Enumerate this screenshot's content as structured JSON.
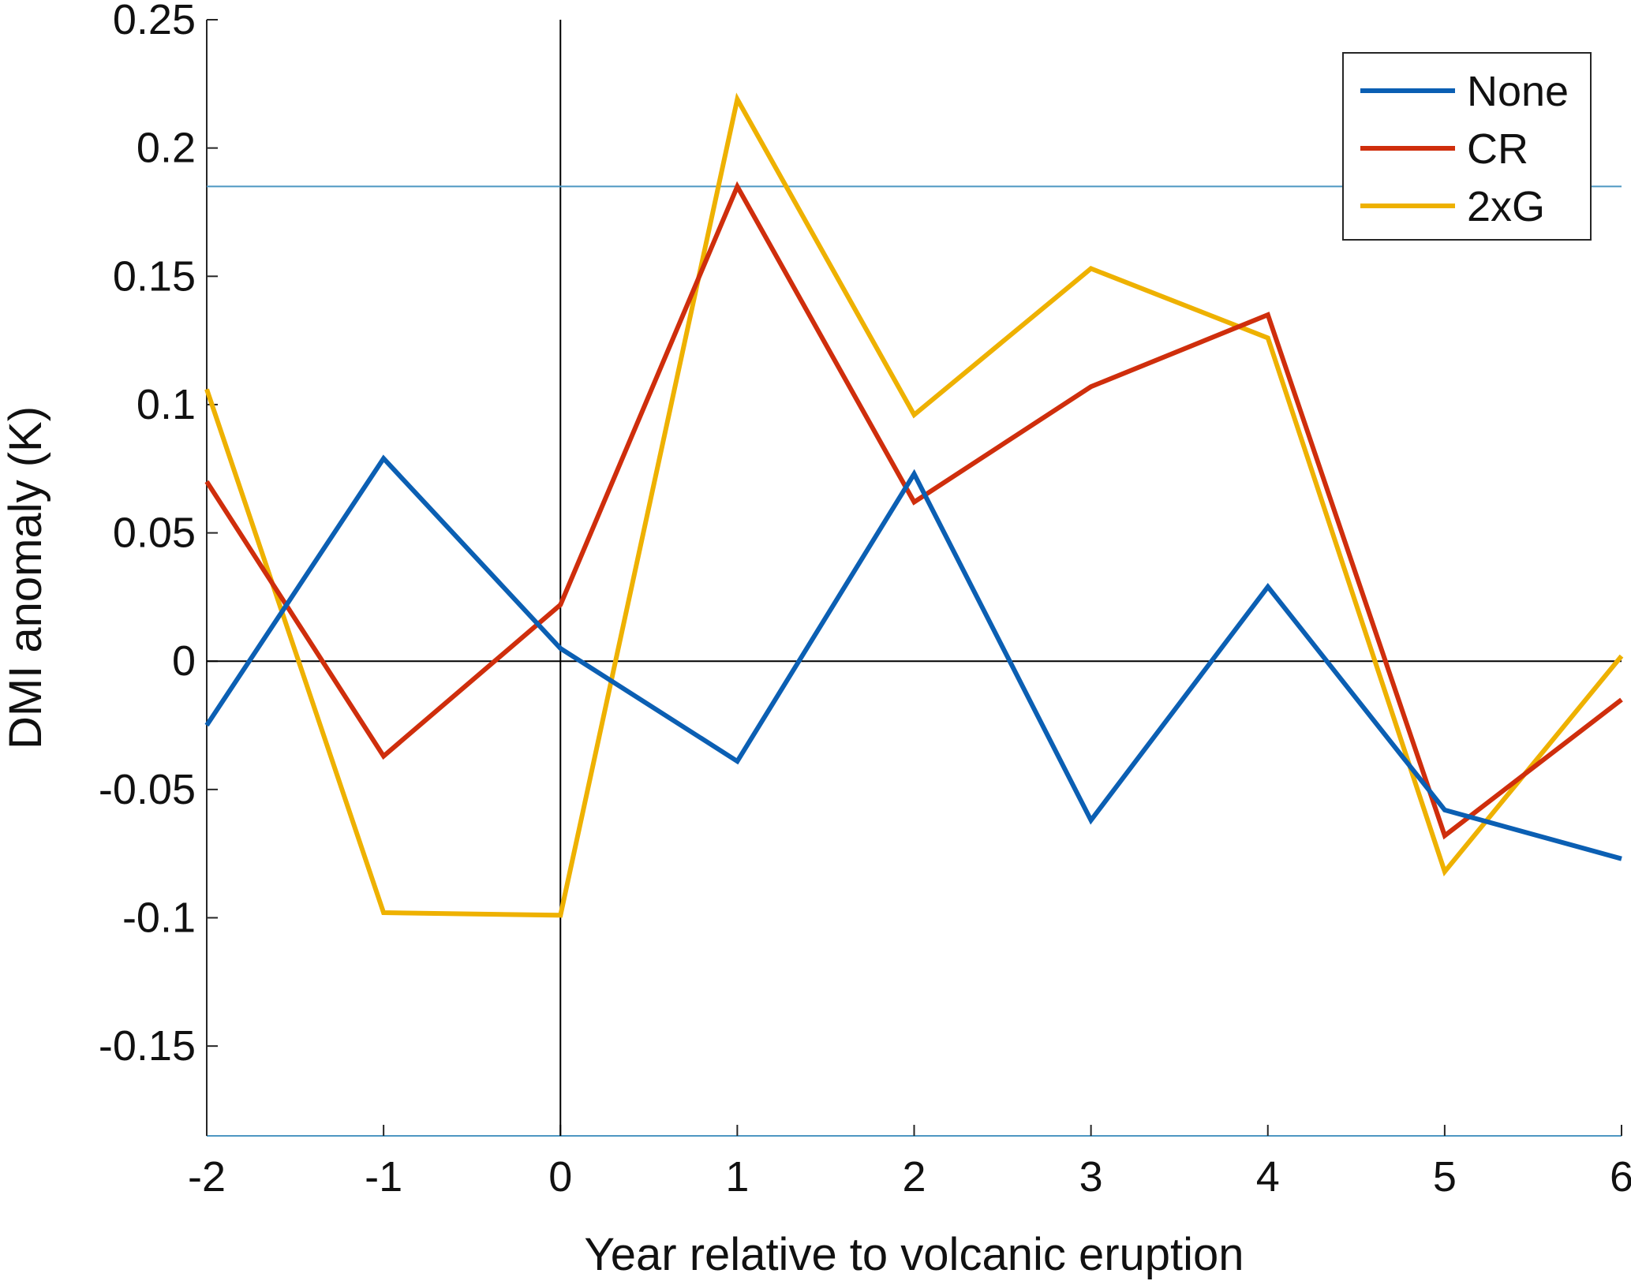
{
  "chart_data": {
    "type": "line",
    "title": "",
    "xlabel": "Year relative to volcanic eruption",
    "ylabel": "DMI anomaly (K)",
    "x": [
      -2,
      -1,
      0,
      1,
      2,
      3,
      4,
      5,
      6
    ],
    "xlim": [
      -2,
      6
    ],
    "ylim": [
      -0.185,
      0.25
    ],
    "xticks": [
      -2,
      -1,
      0,
      1,
      2,
      3,
      4,
      5,
      6
    ],
    "xtick_labels": [
      "-2",
      "-1",
      "0",
      "1",
      "2",
      "3",
      "4",
      "5",
      "6"
    ],
    "yticks": [
      0.25,
      0.2,
      0.15,
      0.1,
      0.05,
      0,
      -0.05,
      -0.1,
      -0.15
    ],
    "ytick_labels": [
      "0.25",
      "0.2",
      "0.15",
      "0.1",
      "0.05",
      "0",
      "-0.05",
      "-0.1",
      "-0.15"
    ],
    "grid": false,
    "legend_position": "top-right",
    "series": [
      {
        "name": "None",
        "color": "#0b5fb3",
        "values": [
          -0.025,
          0.079,
          0.005,
          -0.039,
          0.073,
          -0.062,
          0.029,
          -0.058,
          -0.077
        ]
      },
      {
        "name": "CR",
        "color": "#cf2e0c",
        "values": [
          0.07,
          -0.037,
          0.022,
          0.185,
          0.062,
          0.107,
          0.135,
          -0.068,
          -0.015
        ]
      },
      {
        "name": "2xG",
        "color": "#eeb100",
        "values": [
          0.106,
          -0.098,
          -0.099,
          0.219,
          0.096,
          0.153,
          0.126,
          -0.082,
          0.002
        ]
      }
    ],
    "reference_lines": [
      {
        "orientation": "horizontal",
        "value": 0,
        "color": "#000000"
      },
      {
        "orientation": "vertical",
        "value": 0,
        "color": "#000000"
      },
      {
        "orientation": "horizontal",
        "value": 0.185,
        "color": "#4d97c2"
      }
    ]
  }
}
